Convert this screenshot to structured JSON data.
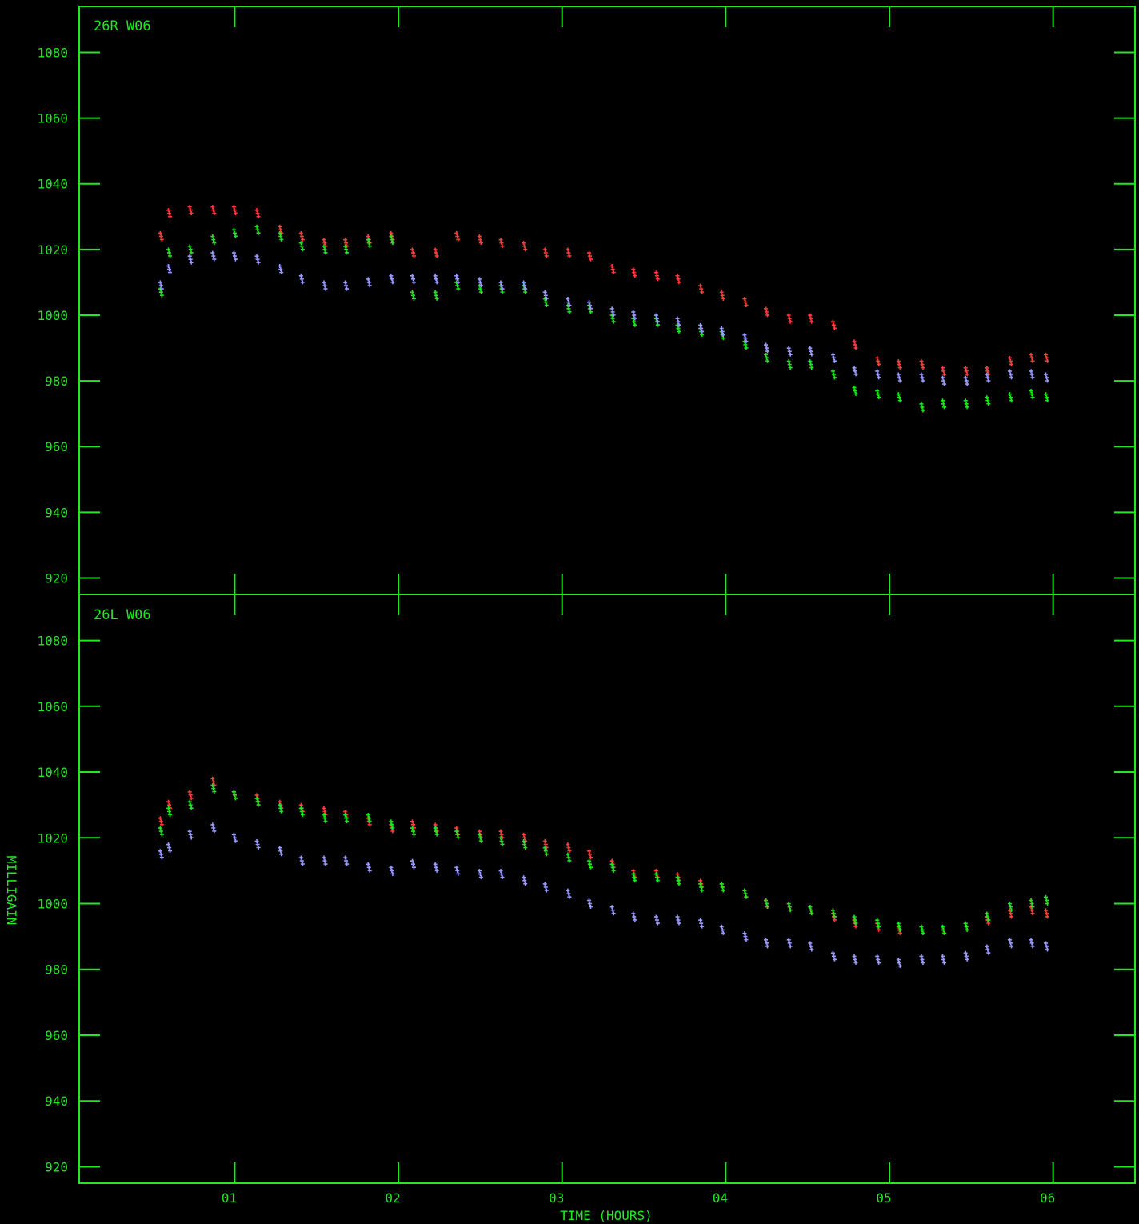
{
  "colors": {
    "frame": "#22e822",
    "series_red": "#ff3c3c",
    "series_green": "#1ee61e",
    "series_blue": "#9a9aff"
  },
  "chart_data": {
    "type": "scatter",
    "xlabel": "TIME (HOURS)",
    "ylabel": "MILLIGAIN",
    "xlim": [
      0.05,
      6.5
    ],
    "ylim": [
      915,
      1094
    ],
    "x_ticks": [
      1,
      2,
      3,
      4,
      5,
      6
    ],
    "x_tick_labels": [
      "01",
      "02",
      "03",
      "04",
      "05",
      "06"
    ],
    "y_ticks": [
      920,
      940,
      960,
      980,
      1000,
      1020,
      1040,
      1060,
      1080
    ],
    "y_tick_labels": [
      "920",
      "940",
      "960",
      "980",
      "1000",
      "1020",
      "1040",
      "1060",
      "1080"
    ],
    "panels": [
      {
        "title": "26R W06",
        "x": [
          0.55,
          0.6,
          0.73,
          0.87,
          1.0,
          1.14,
          1.28,
          1.41,
          1.55,
          1.68,
          1.82,
          1.96,
          2.09,
          2.23,
          2.36,
          2.5,
          2.63,
          2.77,
          2.9,
          3.04,
          3.17,
          3.31,
          3.44,
          3.58,
          3.71,
          3.85,
          3.98,
          4.12,
          4.25,
          4.39,
          4.52,
          4.66,
          4.79,
          4.93,
          5.06,
          5.2,
          5.33,
          5.47,
          5.6,
          5.74,
          5.87,
          5.96
        ],
        "series": [
          {
            "values": [
              1024,
              1031,
              1032,
              1032,
              1032,
              1031,
              1026,
              1024,
              1022,
              1022,
              1023,
              1024,
              1019,
              1019,
              1024,
              1023,
              1022,
              1021,
              1019,
              1019,
              1018,
              1014,
              1013,
              1012,
              1011,
              1008,
              1006,
              1004,
              1001,
              999,
              999,
              997,
              991,
              986,
              985,
              985,
              983,
              983,
              983,
              986,
              987,
              987
            ]
          },
          {
            "values": [
              1007,
              1019,
              1020,
              1023,
              1025,
              1026,
              1024,
              1021,
              1020,
              1020,
              1022,
              1023,
              1006,
              1006,
              1009,
              1008,
              1008,
              1008,
              1004,
              1002,
              1002,
              999,
              998,
              998,
              996,
              995,
              994,
              991,
              987,
              985,
              985,
              982,
              977,
              976,
              975,
              972,
              973,
              973,
              974,
              975,
              976,
              975
            ]
          },
          {
            "values": [
              1009,
              1014,
              1017,
              1018,
              1018,
              1017,
              1014,
              1011,
              1009,
              1009,
              1010,
              1011,
              1011,
              1011,
              1011,
              1010,
              1009,
              1009,
              1006,
              1004,
              1003,
              1001,
              1000,
              999,
              998,
              996,
              995,
              993,
              990,
              989,
              989,
              987,
              983,
              982,
              981,
              981,
              980,
              980,
              981,
              982,
              982,
              981
            ]
          }
        ]
      },
      {
        "title": "26L W06",
        "x": [
          0.55,
          0.6,
          0.73,
          0.87,
          1.0,
          1.14,
          1.28,
          1.41,
          1.55,
          1.68,
          1.82,
          1.96,
          2.09,
          2.23,
          2.36,
          2.5,
          2.63,
          2.77,
          2.9,
          3.04,
          3.17,
          3.31,
          3.44,
          3.58,
          3.71,
          3.85,
          3.98,
          4.12,
          4.25,
          4.39,
          4.52,
          4.66,
          4.79,
          4.93,
          5.06,
          5.2,
          5.33,
          5.47,
          5.6,
          5.74,
          5.87,
          5.96
        ],
        "series": [
          {
            "values": [
              1025,
              1030,
              1033,
              1037,
              1033,
              1032,
              1030,
              1029,
              1028,
              1027,
              1025,
              1023,
              1024,
              1023,
              1022,
              1021,
              1021,
              1020,
              1018,
              1017,
              1015,
              1012,
              1009,
              1009,
              1008,
              1006,
              1005,
              1003,
              1000,
              999,
              998,
              996,
              994,
              993,
              992,
              992,
              992,
              993,
              995,
              997,
              998,
              997
            ]
          },
          {
            "values": [
              1022,
              1028,
              1030,
              1035,
              1033,
              1031,
              1029,
              1028,
              1026,
              1026,
              1026,
              1024,
              1022,
              1022,
              1021,
              1020,
              1019,
              1018,
              1016,
              1014,
              1012,
              1011,
              1008,
              1008,
              1007,
              1005,
              1005,
              1003,
              1000,
              999,
              998,
              997,
              995,
              994,
              993,
              992,
              992,
              993,
              996,
              999,
              1000,
              1001
            ]
          },
          {
            "values": [
              1015,
              1017,
              1021,
              1023,
              1020,
              1018,
              1016,
              1013,
              1013,
              1013,
              1011,
              1010,
              1012,
              1011,
              1010,
              1009,
              1009,
              1007,
              1005,
              1003,
              1000,
              998,
              996,
              995,
              995,
              994,
              992,
              990,
              988,
              988,
              987,
              984,
              983,
              983,
              982,
              983,
              983,
              984,
              986,
              988,
              988,
              987
            ]
          }
        ]
      }
    ]
  }
}
